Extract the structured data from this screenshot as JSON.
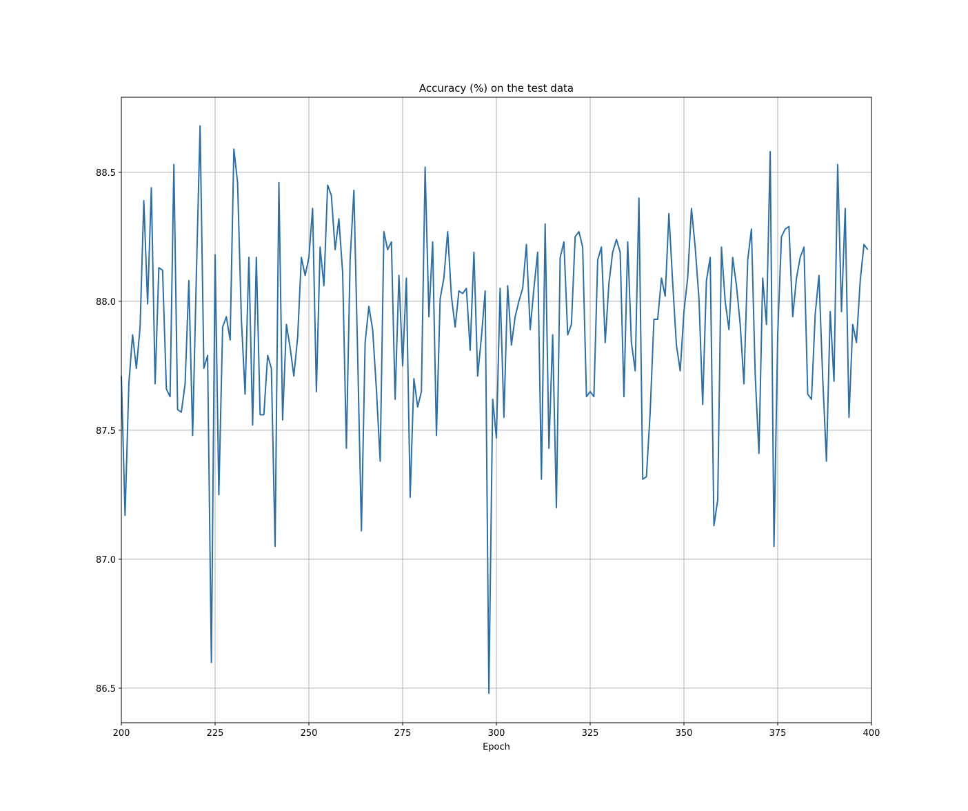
{
  "chart_data": {
    "type": "line",
    "title": "Accuracy (%) on the test data",
    "xlabel": "Epoch",
    "ylabel": "",
    "xlim": [
      200,
      400
    ],
    "ylim": [
      86.366,
      88.791
    ],
    "xticks": [
      200,
      225,
      250,
      275,
      300,
      325,
      350,
      375,
      400
    ],
    "yticks": [
      86.5,
      87.0,
      87.5,
      88.0,
      88.5
    ],
    "ytick_labels": [
      "86.5",
      "87.0",
      "87.5",
      "88.0",
      "88.5"
    ],
    "grid": true,
    "color": "#2b6ea8",
    "x_start": 200,
    "values": [
      87.71,
      87.17,
      87.68,
      87.87,
      87.74,
      87.9,
      88.39,
      87.99,
      88.44,
      87.68,
      88.13,
      88.12,
      87.66,
      87.63,
      88.53,
      87.58,
      87.57,
      87.68,
      88.08,
      87.48,
      88.1,
      88.68,
      87.74,
      87.79,
      86.6,
      88.18,
      87.25,
      87.9,
      87.94,
      87.85,
      88.59,
      88.46,
      87.93,
      87.64,
      88.17,
      87.52,
      88.17,
      87.56,
      87.56,
      87.79,
      87.74,
      87.05,
      88.46,
      87.54,
      87.91,
      87.82,
      87.71,
      87.86,
      88.17,
      88.1,
      88.17,
      88.36,
      87.65,
      88.21,
      88.06,
      88.45,
      88.41,
      88.2,
      88.32,
      88.11,
      87.43,
      88.16,
      88.43,
      87.8,
      87.11,
      87.84,
      87.98,
      87.89,
      87.66,
      87.38,
      88.27,
      88.2,
      88.23,
      87.62,
      88.1,
      87.75,
      88.09,
      87.24,
      87.7,
      87.59,
      87.65,
      88.52,
      87.94,
      88.23,
      87.48,
      88.01,
      88.09,
      88.27,
      88.02,
      87.9,
      88.04,
      88.03,
      88.05,
      87.81,
      88.19,
      87.71,
      87.86,
      88.04,
      86.48,
      87.62,
      87.47,
      88.05,
      87.55,
      88.06,
      87.83,
      87.94,
      88.0,
      88.05,
      88.22,
      87.89,
      88.05,
      88.19,
      87.31,
      88.3,
      87.43,
      87.87,
      87.2,
      88.17,
      88.23,
      87.87,
      87.91,
      88.25,
      88.27,
      88.21,
      87.63,
      87.65,
      87.63,
      88.16,
      88.21,
      87.84,
      88.07,
      88.19,
      88.24,
      88.19,
      87.63,
      88.23,
      87.84,
      87.73,
      88.4,
      87.31,
      87.32,
      87.57,
      87.93,
      87.93,
      88.09,
      88.02,
      88.34,
      88.07,
      87.83,
      87.73,
      87.96,
      88.09,
      88.36,
      88.21,
      88.01,
      87.6,
      88.08,
      88.17,
      87.13,
      87.23,
      88.21,
      88.0,
      87.89,
      88.17,
      88.06,
      87.91,
      87.68,
      88.16,
      88.28,
      87.71,
      87.41,
      88.09,
      87.91,
      88.58,
      87.05,
      87.87,
      88.25,
      88.28,
      88.29,
      87.94,
      88.09,
      88.17,
      88.21,
      87.64,
      87.62,
      87.95,
      88.1,
      87.7,
      87.38,
      87.96,
      87.69,
      88.53,
      87.96,
      88.36,
      87.55,
      87.91,
      87.84,
      88.08,
      88.22,
      88.2
    ]
  }
}
